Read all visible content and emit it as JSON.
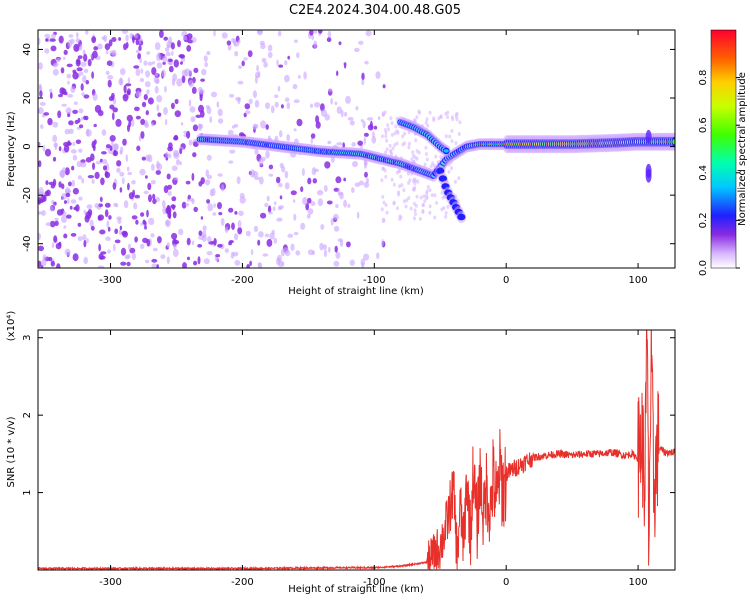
{
  "title": "C2E4.2024.304.00.48.G05",
  "chart_data": [
    {
      "type": "heatmap",
      "xlabel": "Height of straight line (km)",
      "ylabel": "Frequency (Hz)",
      "xlim": [
        -355,
        128
      ],
      "ylim": [
        -50,
        48
      ],
      "xticks": [
        "-300",
        "-200",
        "-100",
        "0",
        "100"
      ],
      "xtick_values": [
        -300,
        -200,
        -100,
        0,
        100
      ],
      "yticks": [
        "-40",
        "-20",
        "0",
        "20",
        "40"
      ],
      "ytick_values": [
        -40,
        -20,
        0,
        20,
        40
      ],
      "colorbar": {
        "label": "Normalized spectral amplitude",
        "range": [
          0,
          1
        ],
        "ticks": [
          "0.0",
          "0.2",
          "0.4",
          "0.6",
          "0.8"
        ],
        "tick_values": [
          0,
          0.2,
          0.4,
          0.6,
          0.8
        ]
      },
      "noise_region_x": [
        -355,
        -100
      ],
      "main_trace": {
        "x": [
          -230,
          -200,
          -170,
          -140,
          -110,
          -95,
          -80,
          -65,
          -55,
          -45,
          -30,
          -20,
          -10,
          0,
          20,
          50,
          80,
          100,
          110,
          128
        ],
        "y": [
          3,
          2,
          0,
          -2,
          -3,
          -5,
          -7,
          -10,
          -12,
          -5,
          0,
          1,
          1,
          1,
          1,
          1,
          1.5,
          2,
          2,
          2
        ]
      },
      "upper_branch": {
        "x": [
          -80,
          -70,
          -60,
          -50,
          -45
        ],
        "y": [
          10,
          8,
          5,
          0,
          -2
        ]
      },
      "lower_branch": {
        "x": [
          -50,
          -45,
          -38,
          -33
        ],
        "y": [
          -10,
          -18,
          -25,
          -30
        ]
      }
    },
    {
      "type": "line",
      "xlabel": "Height of straight line (km)",
      "ylabel": "SNR (10 * v/v)",
      "y_scale_label": "(x10⁴)",
      "xlim": [
        -355,
        128
      ],
      "ylim": [
        0,
        3.1
      ],
      "xticks": [
        "-300",
        "-200",
        "-100",
        "0",
        "100"
      ],
      "xtick_values": [
        -300,
        -200,
        -100,
        0,
        100
      ],
      "yticks": [
        "1",
        "2",
        "3"
      ],
      "ytick_values": [
        1,
        2,
        3
      ],
      "series": [
        {
          "color": "#e8302a",
          "x": [
            -355,
            -300,
            -200,
            -120,
            -100,
            -80,
            -60,
            -50,
            -45,
            -40,
            -37,
            -35,
            -32,
            -30,
            -27,
            -25,
            -22,
            -20,
            -17,
            -15,
            -12,
            -10,
            -7,
            -5,
            -2,
            0,
            5,
            10,
            15,
            20,
            30,
            40,
            50,
            60,
            70,
            80,
            90,
            95,
            100,
            103,
            105,
            106,
            107,
            108,
            110,
            112,
            115,
            120,
            128
          ],
          "y": [
            0.02,
            0.02,
            0.02,
            0.03,
            0.03,
            0.05,
            0.1,
            0.3,
            0.6,
            1.05,
            0.15,
            0.85,
            0.3,
            1.2,
            0.45,
            1.3,
            0.55,
            1.25,
            0.65,
            1.1,
            0.75,
            1.2,
            0.85,
            1.3,
            1.0,
            1.25,
            1.3,
            1.35,
            1.4,
            1.45,
            1.48,
            1.5,
            1.48,
            1.5,
            1.5,
            1.52,
            1.48,
            1.5,
            1.45,
            1.7,
            1.1,
            2.1,
            3.0,
            0.4,
            2.6,
            1.0,
            1.6,
            1.52,
            1.52
          ]
        }
      ]
    }
  ]
}
